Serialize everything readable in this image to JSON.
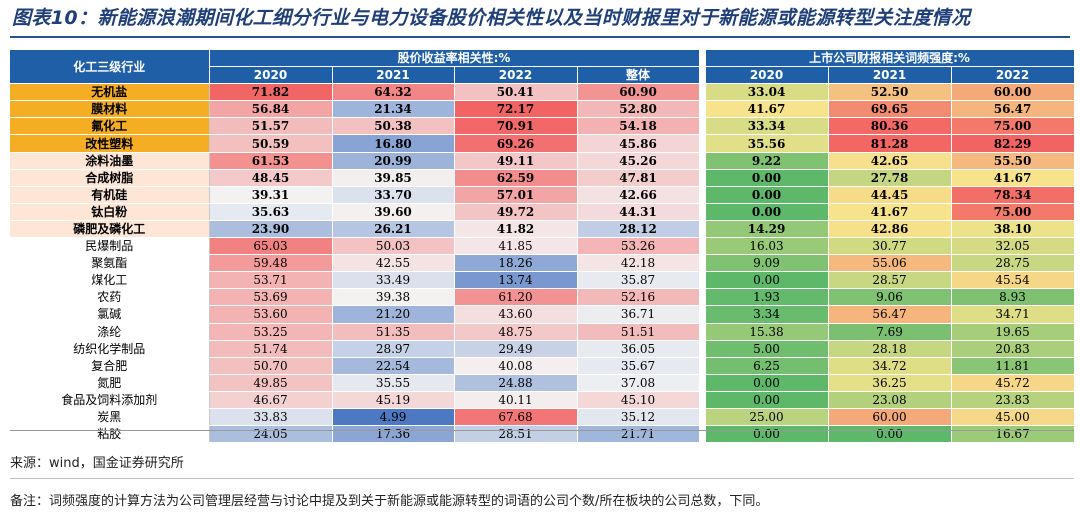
{
  "title": "图表10：新能源浪潮期间化工细分行业与电力设备股价相关性以及当时财报里对于新能源或能源转型关注度情况",
  "header": {
    "industry": "化工三级行业",
    "group1": "股价收益率相关性:%",
    "group2": "上市公司财报相关词频强度:%",
    "corr_cols": [
      "2020",
      "2021",
      "2022",
      "整体"
    ],
    "freq_cols": [
      "2020",
      "2021",
      "2022"
    ]
  },
  "rows": [
    {
      "name": "无机盐",
      "style": "bold",
      "tag": "o",
      "corr": [
        "71.82",
        "64.32",
        "50.41",
        "60.90"
      ],
      "freq": [
        "33.04",
        "52.50",
        "60.00"
      ]
    },
    {
      "name": "膜材料",
      "style": "bold",
      "tag": "o",
      "corr": [
        "56.84",
        "21.34",
        "72.17",
        "52.80"
      ],
      "freq": [
        "41.67",
        "69.65",
        "56.47"
      ]
    },
    {
      "name": "氟化工",
      "style": "bold",
      "tag": "o",
      "corr": [
        "51.57",
        "50.38",
        "70.91",
        "54.18"
      ],
      "freq": [
        "33.34",
        "80.36",
        "75.00"
      ]
    },
    {
      "name": "改性塑料",
      "style": "bold",
      "tag": "o",
      "corr": [
        "50.59",
        "16.80",
        "69.26",
        "45.86"
      ],
      "freq": [
        "35.56",
        "81.28",
        "82.29"
      ]
    },
    {
      "name": "涂料油墨",
      "style": "bold",
      "tag": "p",
      "corr": [
        "61.53",
        "20.99",
        "49.11",
        "45.26"
      ],
      "freq": [
        "9.22",
        "42.65",
        "55.50"
      ]
    },
    {
      "name": "合成树脂",
      "style": "bold",
      "tag": "p",
      "corr": [
        "48.45",
        "39.85",
        "62.59",
        "47.81"
      ],
      "freq": [
        "0.00",
        "27.78",
        "41.67"
      ]
    },
    {
      "name": "有机硅",
      "style": "bold",
      "tag": "p",
      "corr": [
        "39.31",
        "33.70",
        "57.01",
        "42.66"
      ],
      "freq": [
        "0.00",
        "44.45",
        "78.34"
      ]
    },
    {
      "name": "钛白粉",
      "style": "bold",
      "tag": "p",
      "corr": [
        "35.63",
        "39.60",
        "49.72",
        "44.31"
      ],
      "freq": [
        "0.00",
        "41.67",
        "75.00"
      ]
    },
    {
      "name": "磷肥及磷化工",
      "style": "bold",
      "tag": "p",
      "corr": [
        "23.90",
        "26.21",
        "41.82",
        "28.12"
      ],
      "freq": [
        "14.29",
        "42.86",
        "38.10"
      ]
    },
    {
      "name": "民爆制品",
      "style": "normal",
      "tag": "w",
      "corr": [
        "65.03",
        "50.03",
        "41.85",
        "53.26"
      ],
      "freq": [
        "16.03",
        "30.77",
        "32.05"
      ]
    },
    {
      "name": "聚氨酯",
      "style": "normal",
      "tag": "w",
      "corr": [
        "59.48",
        "42.55",
        "18.26",
        "42.18"
      ],
      "freq": [
        "9.09",
        "55.06",
        "28.75"
      ]
    },
    {
      "name": "煤化工",
      "style": "normal",
      "tag": "w",
      "corr": [
        "53.71",
        "33.49",
        "13.74",
        "35.87"
      ],
      "freq": [
        "0.00",
        "28.57",
        "45.54"
      ]
    },
    {
      "name": "农药",
      "style": "normal",
      "tag": "w",
      "corr": [
        "53.69",
        "39.38",
        "61.20",
        "52.16"
      ],
      "freq": [
        "1.93",
        "9.06",
        "8.93"
      ]
    },
    {
      "name": "氯碱",
      "style": "normal",
      "tag": "w",
      "corr": [
        "53.60",
        "21.20",
        "43.60",
        "36.71"
      ],
      "freq": [
        "3.34",
        "56.47",
        "34.71"
      ]
    },
    {
      "name": "涤纶",
      "style": "normal",
      "tag": "w",
      "corr": [
        "53.25",
        "51.35",
        "48.75",
        "51.51"
      ],
      "freq": [
        "15.38",
        "7.69",
        "19.65"
      ]
    },
    {
      "name": "纺织化学制品",
      "style": "normal",
      "tag": "w",
      "corr": [
        "51.74",
        "28.97",
        "29.49",
        "36.05"
      ],
      "freq": [
        "5.00",
        "28.18",
        "20.83"
      ]
    },
    {
      "name": "复合肥",
      "style": "normal",
      "tag": "w",
      "corr": [
        "50.70",
        "22.54",
        "40.08",
        "35.67"
      ],
      "freq": [
        "6.25",
        "34.72",
        "11.81"
      ]
    },
    {
      "name": "氮肥",
      "style": "normal",
      "tag": "w",
      "corr": [
        "49.85",
        "35.55",
        "24.88",
        "37.08"
      ],
      "freq": [
        "0.00",
        "36.25",
        "45.72"
      ]
    },
    {
      "name": "食品及饲料添加剂",
      "style": "normal",
      "tag": "w",
      "corr": [
        "46.67",
        "45.19",
        "40.11",
        "45.10"
      ],
      "freq": [
        "0.00",
        "23.08",
        "23.83"
      ]
    },
    {
      "name": "炭黑",
      "style": "normal",
      "tag": "w",
      "corr": [
        "33.83",
        "4.99",
        "67.68",
        "35.12"
      ],
      "freq": [
        "25.00",
        "60.00",
        "45.00"
      ]
    },
    {
      "name": "粘胶",
      "style": "normal",
      "tag": "w",
      "corr": [
        "24.05",
        "17.36",
        "28.51",
        "21.71"
      ],
      "freq": [
        "0.00",
        "0.00",
        "16.67"
      ]
    }
  ],
  "colors": {
    "header_blue": "#1f5fa8",
    "title_blue": "#1f3f7a",
    "corr_low": "#4d78c2",
    "corr_mid": "#f4f4f4",
    "corr_high": "#f26363",
    "freq_low": "#5db86a",
    "freq_mid": "#f6e58c",
    "freq_high": "#f26363",
    "name_orange": "#f5ad24",
    "name_peach": "#fde6d6"
  },
  "footer": {
    "source": "来源：wind，国金证券研究所",
    "note": "备注：词频强度的计算方法为公司管理层经营与讨论中提及到关于新能源或能源转型的词语的公司个数/所在板块的公司总数，下同。"
  }
}
